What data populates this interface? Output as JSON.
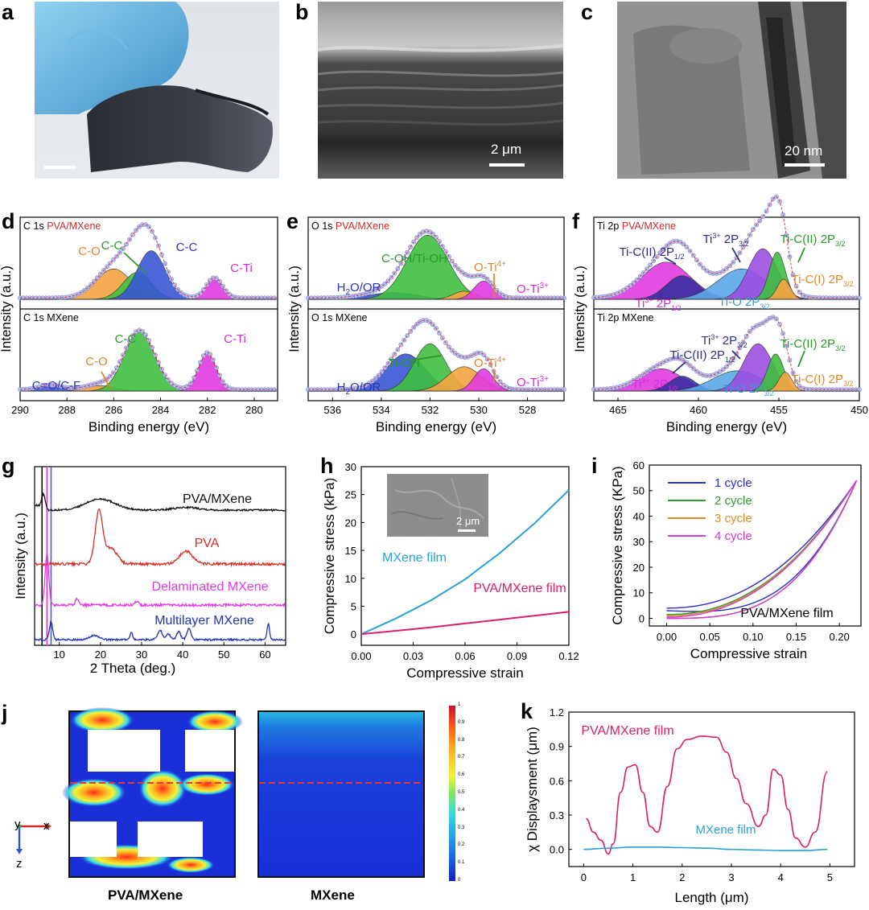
{
  "panels": {
    "a": {
      "label": "a"
    },
    "b": {
      "label": "b",
      "scale": "2 μm"
    },
    "c": {
      "label": "c",
      "scale": "20 nm"
    },
    "d": {
      "label": "d"
    },
    "e": {
      "label": "e"
    },
    "f": {
      "label": "f"
    },
    "g": {
      "label": "g"
    },
    "h": {
      "label": "h",
      "inset_scale": "2 μm"
    },
    "i": {
      "label": "i"
    },
    "j": {
      "label": "j",
      "caption_left": "PVA/MXene",
      "caption_right": "MXene",
      "axis_x": "x",
      "axis_z": "z",
      "axis_y": "y",
      "colorbar_ticks": [
        "1",
        "0.9",
        "0.8",
        "0.7",
        "0.6",
        "0.5",
        "0.4",
        "0.3",
        "0.2",
        "0.1",
        "0"
      ]
    },
    "k": {
      "label": "k"
    }
  },
  "chart_data": [
    {
      "id": "d",
      "type": "line",
      "xlabel": "Binding energy (eV)",
      "ylabel": "Intensity (a.u.)",
      "xlim": [
        290,
        279
      ],
      "xticks": [
        290,
        288,
        286,
        284,
        282,
        280
      ],
      "subplots": [
        {
          "title": "C 1s PVA/MXene",
          "peaks": [
            {
              "name": "C-O",
              "center": 286.0,
              "height": 0.45,
              "width": 0.75,
              "color": "#f5a340"
            },
            {
              "name": "C-C",
              "center": 285.0,
              "height": 0.4,
              "width": 0.6,
              "color": "#3fbf3f"
            },
            {
              "name": "C-C",
              "center": 284.4,
              "height": 0.72,
              "width": 0.6,
              "color": "#3a55d4"
            },
            {
              "name": "C-Ti",
              "center": 281.7,
              "height": 0.3,
              "width": 0.35,
              "color": "#e23be0"
            }
          ]
        },
        {
          "title": "C 1s MXene",
          "peaks": [
            {
              "name": "C=O/C-F",
              "center": 288.7,
              "height": 0.07,
              "width": 0.5,
              "color": "#4a5bd6"
            },
            {
              "name": "C-O",
              "center": 286.6,
              "height": 0.08,
              "width": 0.6,
              "color": "#f5a340"
            },
            {
              "name": "C-C",
              "center": 284.9,
              "height": 0.88,
              "width": 0.65,
              "color": "#3fbf3f"
            },
            {
              "name": "C-Ti",
              "center": 282.0,
              "height": 0.55,
              "width": 0.38,
              "color": "#e23be0"
            }
          ]
        }
      ]
    },
    {
      "id": "e",
      "type": "line",
      "xlabel": "Binding energy (eV)",
      "ylabel": "Intensity (a.u.)",
      "xlim": [
        537,
        526.5
      ],
      "xticks": [
        536,
        534,
        532,
        530,
        528
      ],
      "subplots": [
        {
          "title": "O 1s PVA/MXene",
          "peaks": [
            {
              "name": "H2O/OR",
              "center": 533.5,
              "height": 0.1,
              "width": 1.0,
              "color": "#3a55d4"
            },
            {
              "name": "C-OH/Ti-OH",
              "center": 532.1,
              "height": 0.95,
              "width": 0.85,
              "color": "#3fbf3f"
            },
            {
              "name": "O-Ti4+",
              "center": 530.6,
              "height": 0.12,
              "width": 0.45,
              "color": "#f5a340"
            },
            {
              "name": "O-Ti3+",
              "center": 529.8,
              "height": 0.27,
              "width": 0.4,
              "color": "#e23be0"
            }
          ]
        },
        {
          "title": "O 1s MXene",
          "peaks": [
            {
              "name": "H2O/OR",
              "center": 533.0,
              "height": 0.55,
              "width": 0.8,
              "color": "#3a55d4"
            },
            {
              "name": "Ti-OH",
              "center": 532.0,
              "height": 0.7,
              "width": 0.65,
              "color": "#3fbf3f"
            },
            {
              "name": "O-Ti4+",
              "center": 530.6,
              "height": 0.36,
              "width": 0.7,
              "color": "#f5a340"
            },
            {
              "name": "O-Ti3+",
              "center": 529.8,
              "height": 0.33,
              "width": 0.4,
              "color": "#e23be0"
            }
          ]
        }
      ]
    },
    {
      "id": "f",
      "type": "line",
      "xlabel": "Binding energy (eV)",
      "ylabel": "Intensity (a.u.)",
      "xlim": [
        466.5,
        450
      ],
      "xticks": [
        465,
        460,
        455,
        450
      ],
      "subplots": [
        {
          "title": "Ti 2p PVA/MXene",
          "peaks": [
            {
              "name": "Ti3+ 2P1/2",
              "center": 462.0,
              "height": 0.55,
              "width": 1.5,
              "color": "#e23be0"
            },
            {
              "name": "Ti-C(II) 2P1/2",
              "center": 461.0,
              "height": 0.35,
              "width": 1.0,
              "color": "#3a2fa0"
            },
            {
              "name": "Ti-O 2P3/2",
              "center": 457.3,
              "height": 0.45,
              "width": 1.5,
              "color": "#5aa7e8"
            },
            {
              "name": "Ti3+ 2P3/2",
              "center": 456.0,
              "height": 0.75,
              "width": 0.9,
              "color": "#9b4fe0"
            },
            {
              "name": "Ti-C(II) 2P3/2",
              "center": 455.1,
              "height": 0.7,
              "width": 0.5,
              "color": "#3fbf3f"
            },
            {
              "name": "Ti-C(I) 2P3/2",
              "center": 454.7,
              "height": 0.3,
              "width": 0.4,
              "color": "#f5a340"
            }
          ]
        },
        {
          "title": "Ti 2p MXene",
          "peaks": [
            {
              "name": "Ti3+ 2P1/2",
              "center": 462.3,
              "height": 0.33,
              "width": 1.3,
              "color": "#e23be0"
            },
            {
              "name": "Ti-C(II) 2P1/2",
              "center": 461.0,
              "height": 0.22,
              "width": 0.8,
              "color": "#3a2fa0"
            },
            {
              "name": "Ti-O 2P3/2",
              "center": 457.6,
              "height": 0.3,
              "width": 1.5,
              "color": "#5aa7e8"
            },
            {
              "name": "Ti3+ 2P3/2",
              "center": 456.3,
              "height": 0.7,
              "width": 0.9,
              "color": "#9b4fe0"
            },
            {
              "name": "Ti-C(II) 2P3/2",
              "center": 455.2,
              "height": 0.55,
              "width": 0.5,
              "color": "#3fbf3f"
            },
            {
              "name": "Ti-C(I) 2P3/2",
              "center": 454.6,
              "height": 0.28,
              "width": 0.4,
              "color": "#f5a340"
            }
          ]
        }
      ]
    },
    {
      "id": "g",
      "type": "line",
      "xlabel": "2 Theta (deg.)",
      "ylabel": "Intensity (a.u.)",
      "xlim": [
        4,
        65
      ],
      "xticks": [
        10,
        20,
        30,
        40,
        50,
        60
      ],
      "series": [
        {
          "name": "PVA/MXene",
          "color": "#111111",
          "peaks": [
            {
              "x": 6.2,
              "h": 0.7,
              "w": 0.4
            },
            {
              "x": 20,
              "h": 0.5,
              "w": 3.5
            },
            {
              "x": 41,
              "h": 0.12,
              "w": 3
            }
          ]
        },
        {
          "name": "PVA",
          "color": "#d4302a",
          "peaks": [
            {
              "x": 19.6,
              "h": 1.6,
              "w": 0.9
            },
            {
              "x": 22.5,
              "h": 0.5,
              "w": 1.5
            },
            {
              "x": 40.8,
              "h": 0.4,
              "w": 1.6
            }
          ]
        },
        {
          "name": "Delaminated MXene",
          "color": "#e23be0",
          "peaks": [
            {
              "x": 7.0,
              "h": 1.6,
              "w": 0.45
            },
            {
              "x": 14.3,
              "h": 0.2,
              "w": 0.4
            },
            {
              "x": 28.8,
              "h": 0.1,
              "w": 0.5
            }
          ]
        },
        {
          "name": "Multilayer MXene",
          "color": "#2233b0",
          "peaks": [
            {
              "x": 8.0,
              "h": 0.8,
              "w": 0.4
            },
            {
              "x": 18.5,
              "h": 0.2,
              "w": 1.0
            },
            {
              "x": 27.5,
              "h": 0.35,
              "w": 0.3
            },
            {
              "x": 34.5,
              "h": 0.4,
              "w": 0.6
            },
            {
              "x": 36.5,
              "h": 0.25,
              "w": 0.5
            },
            {
              "x": 39,
              "h": 0.35,
              "w": 0.5
            },
            {
              "x": 41.5,
              "h": 0.5,
              "w": 0.5
            },
            {
              "x": 60.8,
              "h": 0.7,
              "w": 0.3
            }
          ]
        }
      ],
      "vlines": [
        {
          "x": 5.8,
          "color": "#111111"
        },
        {
          "x": 7.0,
          "color": "#e23be0"
        },
        {
          "x": 8.0,
          "color": "#4a5bd6"
        }
      ]
    },
    {
      "id": "h",
      "type": "line",
      "xlabel": "Compressive strain",
      "ylabel": "Compressive stress (kPa)",
      "xlim": [
        0,
        0.12
      ],
      "ylim": [
        -2,
        30
      ],
      "xticks": [
        "0.00",
        "0.03",
        "0.06",
        "0.09",
        "0.12"
      ],
      "yticks": [
        0,
        5,
        10,
        15,
        20,
        25,
        30
      ],
      "series": [
        {
          "name": "MXene film",
          "color": "#2aa1d8",
          "x": [
            0,
            0.02,
            0.04,
            0.06,
            0.08,
            0.1,
            0.12
          ],
          "y": [
            0,
            2.8,
            6.0,
            9.8,
            14.5,
            19.8,
            25.8
          ]
        },
        {
          "name": "PVA/MXene film",
          "color": "#d91f6a",
          "x": [
            0,
            0.02,
            0.04,
            0.06,
            0.08,
            0.1,
            0.12
          ],
          "y": [
            0,
            0.6,
            1.2,
            1.9,
            2.6,
            3.3,
            4.0
          ]
        }
      ]
    },
    {
      "id": "i",
      "type": "line",
      "xlabel": "Compressive strain",
      "ylabel": "Compressive stress (KPa)",
      "xlim": [
        -0.02,
        0.225
      ],
      "ylim": [
        -3,
        60
      ],
      "xticks": [
        "0.00",
        "0.05",
        "0.10",
        "0.15",
        "0.20"
      ],
      "yticks": [
        0,
        10,
        20,
        30,
        40,
        50,
        60
      ],
      "annotation": "PVA/MXene film",
      "series": [
        {
          "name": "1 cycle",
          "color": "#2b2fc4",
          "offset": 4
        },
        {
          "name": "2 cycle",
          "color": "#2e9a2e",
          "offset": 1.5
        },
        {
          "name": "3 cycle",
          "color": "#e08a2a",
          "offset": 1.0
        },
        {
          "name": "4 cycle",
          "color": "#d43bd8",
          "offset": 0.5
        }
      ],
      "max_strain": 0.22,
      "max_stress": 54
    },
    {
      "id": "k",
      "type": "line",
      "xlabel": "Length (μm)",
      "ylabel": "χ Displaysment (μm)",
      "xlim": [
        -0.3,
        5.5
      ],
      "ylim": [
        -0.15,
        1.2
      ],
      "xticks": [
        0,
        1,
        2,
        3,
        4,
        5
      ],
      "yticks": [
        "0.0",
        "0.3",
        "0.6",
        "0.9",
        "1.2"
      ],
      "series": [
        {
          "name": "PVA/MXene film",
          "color": "#d91f6a",
          "x": [
            0.05,
            0.2,
            0.35,
            0.5,
            0.6,
            0.75,
            0.9,
            1.05,
            1.2,
            1.35,
            1.5,
            1.7,
            1.9,
            2.1,
            2.4,
            2.7,
            2.9,
            3.1,
            3.3,
            3.55,
            3.7,
            3.85,
            4.0,
            4.15,
            4.3,
            4.5,
            4.7,
            4.95
          ],
          "y": [
            0.27,
            0.15,
            0.08,
            -0.04,
            0.05,
            0.5,
            0.72,
            0.74,
            0.5,
            0.2,
            0.15,
            0.55,
            0.88,
            0.96,
            0.99,
            0.98,
            0.85,
            0.62,
            0.4,
            0.2,
            0.3,
            0.7,
            0.65,
            0.35,
            0.1,
            0.02,
            0.15,
            0.68
          ]
        },
        {
          "name": "MXene film",
          "color": "#2aa1d8",
          "x": [
            0,
            0.5,
            1,
            1.5,
            2,
            2.5,
            3,
            3.5,
            4,
            4.5,
            4.95
          ],
          "y": [
            0.0,
            0.01,
            0.02,
            0.02,
            0.015,
            0.01,
            0.0,
            -0.005,
            -0.01,
            -0.01,
            0.0
          ]
        }
      ]
    }
  ]
}
